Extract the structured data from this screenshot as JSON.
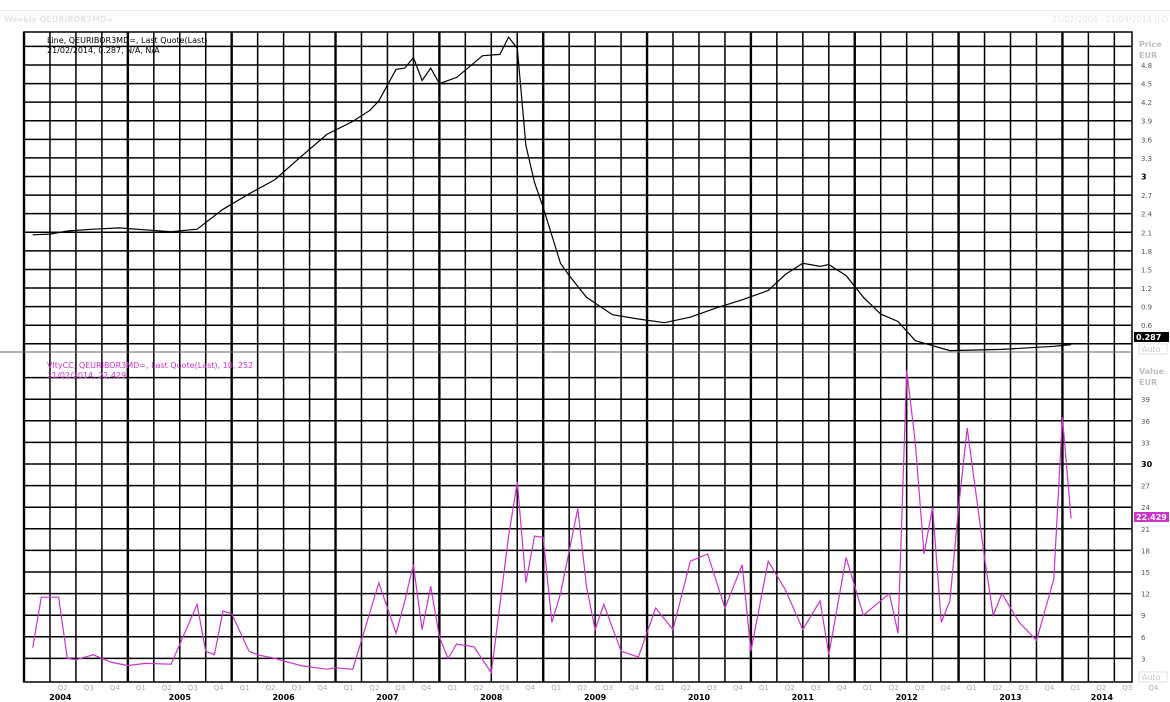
{
  "window": {
    "title": "Weekly QEURIBOR3MD=",
    "date_range": "25/02/2004 - 01/09/2014 (LO"
  },
  "colors": {
    "price_line": "#000000",
    "vol_line": "#cc33cc",
    "grid": "#000000",
    "axis_text": "#555555",
    "price_tag_bg": "#000000",
    "vol_tag_bg": "#cc33cc"
  },
  "price_panel": {
    "legend_line1": "Line, QEURIBOR3MD=, Last Quote(Last)",
    "legend_line2": "21/02/2014, 0.287, N/A, N/A",
    "axis_title": "Price",
    "axis_unit": "EUR",
    "tick_labels": [
      "0.6",
      "0.9",
      "1.2",
      "1.5",
      "1.8",
      "2.1",
      "2.4",
      "2.7",
      "3",
      "3.3",
      "3.6",
      "3.9",
      "4.2",
      "4.5",
      "4.8"
    ],
    "bold_tick": "3",
    "last_value_tag": "0.287",
    "auto_button": "Auto"
  },
  "vol_panel": {
    "legend_line1": "VltyCC, QEURIBOR3MD=, Last Quote(Last), 10, 252",
    "legend_line2": "21/02/2014, 22.429",
    "axis_title": "Value",
    "axis_unit": "EUR",
    "tick_labels": [
      "3",
      "6",
      "9",
      "12",
      "15",
      "18",
      "21",
      "24",
      "27",
      "30",
      "33",
      "36",
      "39"
    ],
    "bold_tick": "30",
    "last_value_tag": "22.429",
    "auto_button": "Auto"
  },
  "x_axis": {
    "quarter_labels": [
      "Q2",
      "Q3",
      "Q4",
      "Q1",
      "Q2",
      "Q3",
      "Q4",
      "Q1",
      "Q2",
      "Q3",
      "Q4",
      "Q1",
      "Q2",
      "Q3",
      "Q4",
      "Q1",
      "Q2",
      "Q3",
      "Q4",
      "Q1",
      "Q2",
      "Q3",
      "Q4",
      "Q1",
      "Q2",
      "Q3",
      "Q4",
      "Q1",
      "Q2",
      "Q3",
      "Q4",
      "Q1",
      "Q2",
      "Q3",
      "Q4",
      "Q1",
      "Q2",
      "Q3",
      "Q4",
      "Q1",
      "Q2",
      "Q3",
      "Q4",
      "Q1",
      "Q2",
      "Q3"
    ],
    "year_labels": [
      "2004",
      "2005",
      "2006",
      "2007",
      "2008",
      "2009",
      "2010",
      "2011",
      "2012",
      "2013",
      "2014"
    ]
  },
  "chart_data": [
    {
      "type": "line",
      "title": "Line, QEURIBOR3MD=, Last Quote(Last)",
      "ylabel": "Price EUR",
      "ylim": [
        0.2,
        5.3
      ],
      "grid": true,
      "series": [
        {
          "name": "QEURIBOR3MD= Last Quote",
          "x": [
            "2004-02",
            "2004-04",
            "2004-06",
            "2004-09",
            "2004-12",
            "2005-03",
            "2005-06",
            "2005-09",
            "2005-12",
            "2006-03",
            "2006-06",
            "2006-09",
            "2006-12",
            "2007-03",
            "2007-05",
            "2007-06",
            "2007-08",
            "2007-09",
            "2007-10",
            "2007-11",
            "2007-12",
            "2008-01",
            "2008-03",
            "2008-06",
            "2008-08",
            "2008-09",
            "2008-10",
            "2008-11",
            "2008-12",
            "2009-01",
            "2009-03",
            "2009-04",
            "2009-06",
            "2009-09",
            "2009-12",
            "2010-03",
            "2010-06",
            "2010-09",
            "2010-12",
            "2011-03",
            "2011-05",
            "2011-07",
            "2011-09",
            "2011-10",
            "2011-12",
            "2012-02",
            "2012-04",
            "2012-06",
            "2012-08",
            "2012-12",
            "2013-06",
            "2013-12",
            "2014-02"
          ],
          "values": [
            2.06,
            2.07,
            2.12,
            2.15,
            2.17,
            2.14,
            2.11,
            2.15,
            2.47,
            2.72,
            2.95,
            3.32,
            3.68,
            3.89,
            4.07,
            4.22,
            4.73,
            4.75,
            4.92,
            4.55,
            4.75,
            4.5,
            4.6,
            4.95,
            4.97,
            5.25,
            5.07,
            3.5,
            2.9,
            2.5,
            1.6,
            1.4,
            1.05,
            0.77,
            0.7,
            0.64,
            0.73,
            0.88,
            1.01,
            1.16,
            1.42,
            1.6,
            1.55,
            1.58,
            1.4,
            1.05,
            0.78,
            0.66,
            0.35,
            0.19,
            0.21,
            0.26,
            0.287
          ]
        }
      ]
    },
    {
      "type": "line",
      "title": "VltyCC, QEURIBOR3MD=, Last Quote(Last), 10, 252",
      "ylabel": "Value EUR",
      "ylim": [
        0,
        45
      ],
      "grid": true,
      "series": [
        {
          "name": "VltyCC 10, 252",
          "x": [
            "2004-02",
            "2004-03",
            "2004-05",
            "2004-06",
            "2004-07",
            "2004-09",
            "2004-11",
            "2005-01",
            "2005-03",
            "2005-06",
            "2005-09",
            "2005-10",
            "2005-11",
            "2005-12",
            "2006-01",
            "2006-03",
            "2006-04",
            "2006-06",
            "2006-09",
            "2006-12",
            "2007-01",
            "2007-03",
            "2007-06",
            "2007-08",
            "2007-09",
            "2007-10",
            "2007-11",
            "2007-12",
            "2008-01",
            "2008-02",
            "2008-03",
            "2008-05",
            "2008-07",
            "2008-09",
            "2008-10",
            "2008-11",
            "2008-12",
            "2009-01",
            "2009-02",
            "2009-03",
            "2009-05",
            "2009-06",
            "2009-07",
            "2009-08",
            "2009-10",
            "2009-12",
            "2010-02",
            "2010-04",
            "2010-06",
            "2010-08",
            "2010-10",
            "2010-12",
            "2011-01",
            "2011-03",
            "2011-05",
            "2011-07",
            "2011-09",
            "2011-10",
            "2011-12",
            "2012-02",
            "2012-04",
            "2012-05",
            "2012-06",
            "2012-07",
            "2012-08",
            "2012-09",
            "2012-10",
            "2012-11",
            "2012-12",
            "2013-01",
            "2013-02",
            "2013-04",
            "2013-05",
            "2013-06",
            "2013-08",
            "2013-10",
            "2013-12",
            "2014-01",
            "2014-02"
          ],
          "values": [
            4.5,
            11.5,
            11.5,
            3.0,
            2.8,
            3.5,
            2.5,
            2.0,
            2.3,
            2.2,
            10.5,
            4.0,
            3.5,
            9.6,
            9.2,
            4.0,
            3.5,
            3.0,
            2.0,
            1.5,
            1.7,
            1.5,
            13.5,
            6.5,
            11.0,
            16.0,
            7.0,
            13.0,
            6.0,
            3.0,
            5.0,
            4.6,
            1.0,
            20.0,
            27.5,
            13.5,
            20.0,
            19.8,
            8.0,
            12.0,
            23.8,
            13.0,
            7.0,
            10.5,
            4.0,
            3.2,
            10.0,
            7.0,
            16.5,
            17.5,
            10.0,
            16.0,
            4.0,
            16.5,
            12.5,
            7.0,
            11.0,
            3.5,
            17.0,
            9.0,
            11.0,
            12.0,
            6.5,
            43.0,
            33.0,
            17.5,
            24.0,
            8.0,
            11.0,
            24.0,
            35.0,
            17.0,
            9.0,
            12.0,
            8.0,
            5.5,
            14.0,
            36.5,
            22.429
          ]
        }
      ]
    }
  ]
}
